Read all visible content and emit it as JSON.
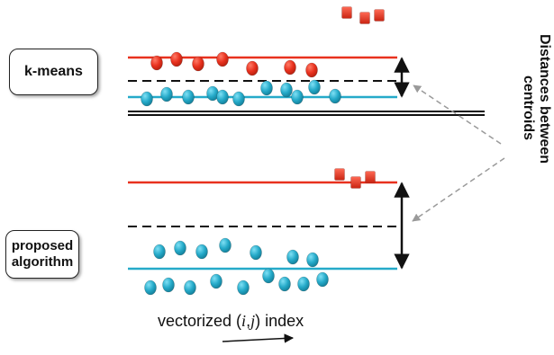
{
  "labels": {
    "kmeans": "k-means",
    "proposed_line1": "proposed",
    "proposed_line2": "algorithm",
    "xlabel_prefix": "vectorized (",
    "xlabel_i": "i",
    "xlabel_comma": ",",
    "xlabel_j": "j",
    "xlabel_suffix": ") index",
    "side_line1": "Distances between",
    "side_line2": "centroids"
  },
  "colors": {
    "red": "#e8311e",
    "red_dark": "#b3200f",
    "cyan": "#25aac9",
    "cyan_dark": "#137c96",
    "black": "#111111",
    "gray": "#9a9a9a"
  },
  "markers": {
    "legend_red_squares": 3,
    "kmeans_red_points": 8,
    "kmeans_cyan_points": 13,
    "proposed_red_squares": 3,
    "proposed_cyan_points": 19
  }
}
